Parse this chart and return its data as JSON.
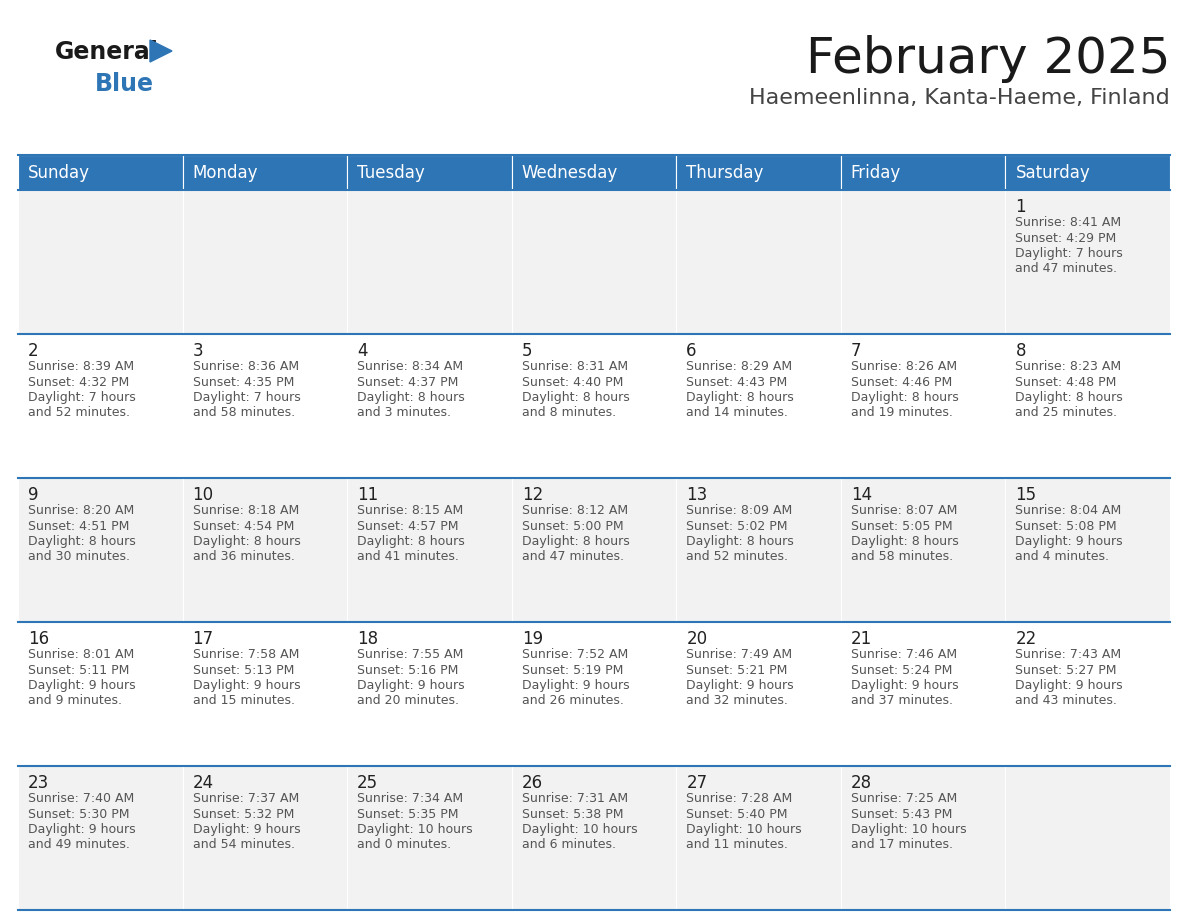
{
  "title": "February 2025",
  "subtitle": "Haemeenlinna, Kanta-Haeme, Finland",
  "header_color": "#2e75b6",
  "header_text_color": "#ffffff",
  "bg_color": "#ffffff",
  "alt_row_color": "#f2f2f2",
  "line_color": "#2e75b6",
  "day_headers": [
    "Sunday",
    "Monday",
    "Tuesday",
    "Wednesday",
    "Thursday",
    "Friday",
    "Saturday"
  ],
  "days": [
    {
      "day": 1,
      "col": 6,
      "row": 0,
      "sunrise": "8:41 AM",
      "sunset": "4:29 PM",
      "daylight": "7 hours\nand 47 minutes."
    },
    {
      "day": 2,
      "col": 0,
      "row": 1,
      "sunrise": "8:39 AM",
      "sunset": "4:32 PM",
      "daylight": "7 hours\nand 52 minutes."
    },
    {
      "day": 3,
      "col": 1,
      "row": 1,
      "sunrise": "8:36 AM",
      "sunset": "4:35 PM",
      "daylight": "7 hours\nand 58 minutes."
    },
    {
      "day": 4,
      "col": 2,
      "row": 1,
      "sunrise": "8:34 AM",
      "sunset": "4:37 PM",
      "daylight": "8 hours\nand 3 minutes."
    },
    {
      "day": 5,
      "col": 3,
      "row": 1,
      "sunrise": "8:31 AM",
      "sunset": "4:40 PM",
      "daylight": "8 hours\nand 8 minutes."
    },
    {
      "day": 6,
      "col": 4,
      "row": 1,
      "sunrise": "8:29 AM",
      "sunset": "4:43 PM",
      "daylight": "8 hours\nand 14 minutes."
    },
    {
      "day": 7,
      "col": 5,
      "row": 1,
      "sunrise": "8:26 AM",
      "sunset": "4:46 PM",
      "daylight": "8 hours\nand 19 minutes."
    },
    {
      "day": 8,
      "col": 6,
      "row": 1,
      "sunrise": "8:23 AM",
      "sunset": "4:48 PM",
      "daylight": "8 hours\nand 25 minutes."
    },
    {
      "day": 9,
      "col": 0,
      "row": 2,
      "sunrise": "8:20 AM",
      "sunset": "4:51 PM",
      "daylight": "8 hours\nand 30 minutes."
    },
    {
      "day": 10,
      "col": 1,
      "row": 2,
      "sunrise": "8:18 AM",
      "sunset": "4:54 PM",
      "daylight": "8 hours\nand 36 minutes."
    },
    {
      "day": 11,
      "col": 2,
      "row": 2,
      "sunrise": "8:15 AM",
      "sunset": "4:57 PM",
      "daylight": "8 hours\nand 41 minutes."
    },
    {
      "day": 12,
      "col": 3,
      "row": 2,
      "sunrise": "8:12 AM",
      "sunset": "5:00 PM",
      "daylight": "8 hours\nand 47 minutes."
    },
    {
      "day": 13,
      "col": 4,
      "row": 2,
      "sunrise": "8:09 AM",
      "sunset": "5:02 PM",
      "daylight": "8 hours\nand 52 minutes."
    },
    {
      "day": 14,
      "col": 5,
      "row": 2,
      "sunrise": "8:07 AM",
      "sunset": "5:05 PM",
      "daylight": "8 hours\nand 58 minutes."
    },
    {
      "day": 15,
      "col": 6,
      "row": 2,
      "sunrise": "8:04 AM",
      "sunset": "5:08 PM",
      "daylight": "9 hours\nand 4 minutes."
    },
    {
      "day": 16,
      "col": 0,
      "row": 3,
      "sunrise": "8:01 AM",
      "sunset": "5:11 PM",
      "daylight": "9 hours\nand 9 minutes."
    },
    {
      "day": 17,
      "col": 1,
      "row": 3,
      "sunrise": "7:58 AM",
      "sunset": "5:13 PM",
      "daylight": "9 hours\nand 15 minutes."
    },
    {
      "day": 18,
      "col": 2,
      "row": 3,
      "sunrise": "7:55 AM",
      "sunset": "5:16 PM",
      "daylight": "9 hours\nand 20 minutes."
    },
    {
      "day": 19,
      "col": 3,
      "row": 3,
      "sunrise": "7:52 AM",
      "sunset": "5:19 PM",
      "daylight": "9 hours\nand 26 minutes."
    },
    {
      "day": 20,
      "col": 4,
      "row": 3,
      "sunrise": "7:49 AM",
      "sunset": "5:21 PM",
      "daylight": "9 hours\nand 32 minutes."
    },
    {
      "day": 21,
      "col": 5,
      "row": 3,
      "sunrise": "7:46 AM",
      "sunset": "5:24 PM",
      "daylight": "9 hours\nand 37 minutes."
    },
    {
      "day": 22,
      "col": 6,
      "row": 3,
      "sunrise": "7:43 AM",
      "sunset": "5:27 PM",
      "daylight": "9 hours\nand 43 minutes."
    },
    {
      "day": 23,
      "col": 0,
      "row": 4,
      "sunrise": "7:40 AM",
      "sunset": "5:30 PM",
      "daylight": "9 hours\nand 49 minutes."
    },
    {
      "day": 24,
      "col": 1,
      "row": 4,
      "sunrise": "7:37 AM",
      "sunset": "5:32 PM",
      "daylight": "9 hours\nand 54 minutes."
    },
    {
      "day": 25,
      "col": 2,
      "row": 4,
      "sunrise": "7:34 AM",
      "sunset": "5:35 PM",
      "daylight": "10 hours\nand 0 minutes."
    },
    {
      "day": 26,
      "col": 3,
      "row": 4,
      "sunrise": "7:31 AM",
      "sunset": "5:38 PM",
      "daylight": "10 hours\nand 6 minutes."
    },
    {
      "day": 27,
      "col": 4,
      "row": 4,
      "sunrise": "7:28 AM",
      "sunset": "5:40 PM",
      "daylight": "10 hours\nand 11 minutes."
    },
    {
      "day": 28,
      "col": 5,
      "row": 4,
      "sunrise": "7:25 AM",
      "sunset": "5:43 PM",
      "daylight": "10 hours\nand 17 minutes."
    }
  ],
  "num_rows": 5,
  "num_cols": 7,
  "title_fontsize": 36,
  "subtitle_fontsize": 16,
  "header_fontsize": 12,
  "day_num_fontsize": 12,
  "info_fontsize": 9
}
